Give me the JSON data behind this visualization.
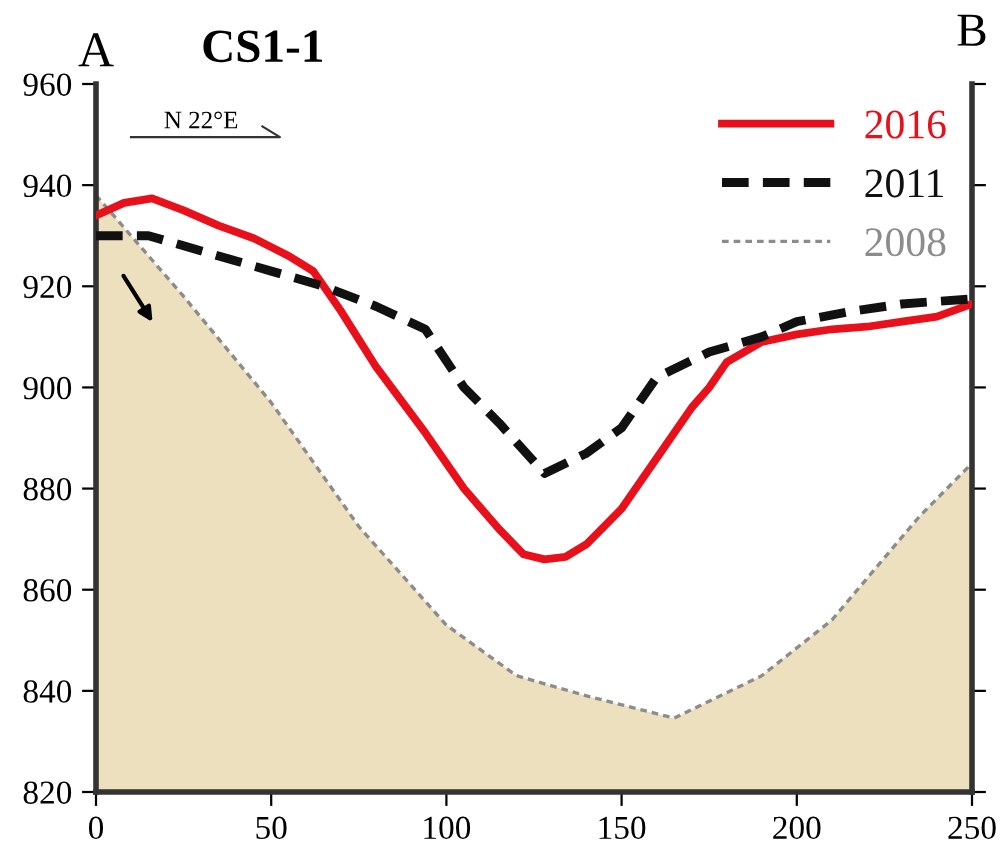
{
  "chart_data": {
    "type": "line",
    "title": "CS1-1",
    "annotations": [
      "A",
      "B",
      "N 22°E"
    ],
    "xlim": [
      0,
      250
    ],
    "ylim": [
      820,
      960
    ],
    "xticks": [
      0,
      50,
      100,
      150,
      200,
      250
    ],
    "yticks": [
      820,
      840,
      860,
      880,
      900,
      920,
      940,
      960
    ],
    "grid": false,
    "legend": "top right",
    "marker": "none",
    "series": [
      {
        "name": "2016",
        "color": "#e8101a",
        "line_style": "solid",
        "x": [
          0,
          8,
          16,
          25,
          35,
          45,
          55,
          62,
          70,
          80,
          94,
          105,
          115,
          122,
          128,
          134,
          140,
          150,
          160,
          170,
          175,
          180,
          190,
          200,
          210,
          220,
          230,
          240,
          250
        ],
        "values": [
          934,
          936.5,
          937.4,
          935,
          932,
          929.5,
          926,
          923,
          915,
          904,
          891,
          880,
          872,
          867,
          866,
          866.5,
          869,
          876,
          886,
          896,
          900,
          905,
          909,
          910.5,
          911.5,
          912,
          913,
          914,
          916.5
        ]
      },
      {
        "name": "2011",
        "color": "#111111",
        "line_style": "dashed",
        "x": [
          0,
          15,
          25,
          40,
          50,
          65,
          80,
          94,
          105,
          115,
          128,
          140,
          150,
          160,
          175,
          190,
          200,
          215,
          230,
          250
        ],
        "values": [
          930,
          930,
          928,
          925,
          923,
          920,
          916,
          911.5,
          900,
          893,
          883,
          887,
          892,
          902,
          907,
          910,
          913,
          915,
          916.5,
          917.5
        ]
      },
      {
        "name": "2008",
        "type": "area",
        "color": "#8c8c8c",
        "line_style": "dotted",
        "x": [
          0,
          25,
          50,
          75,
          100,
          120,
          140,
          165,
          190,
          210,
          235,
          250
        ],
        "values": [
          938,
          918,
          897,
          872.5,
          853,
          843,
          839,
          834.6,
          843,
          854,
          874.5,
          885
        ]
      }
    ]
  }
}
